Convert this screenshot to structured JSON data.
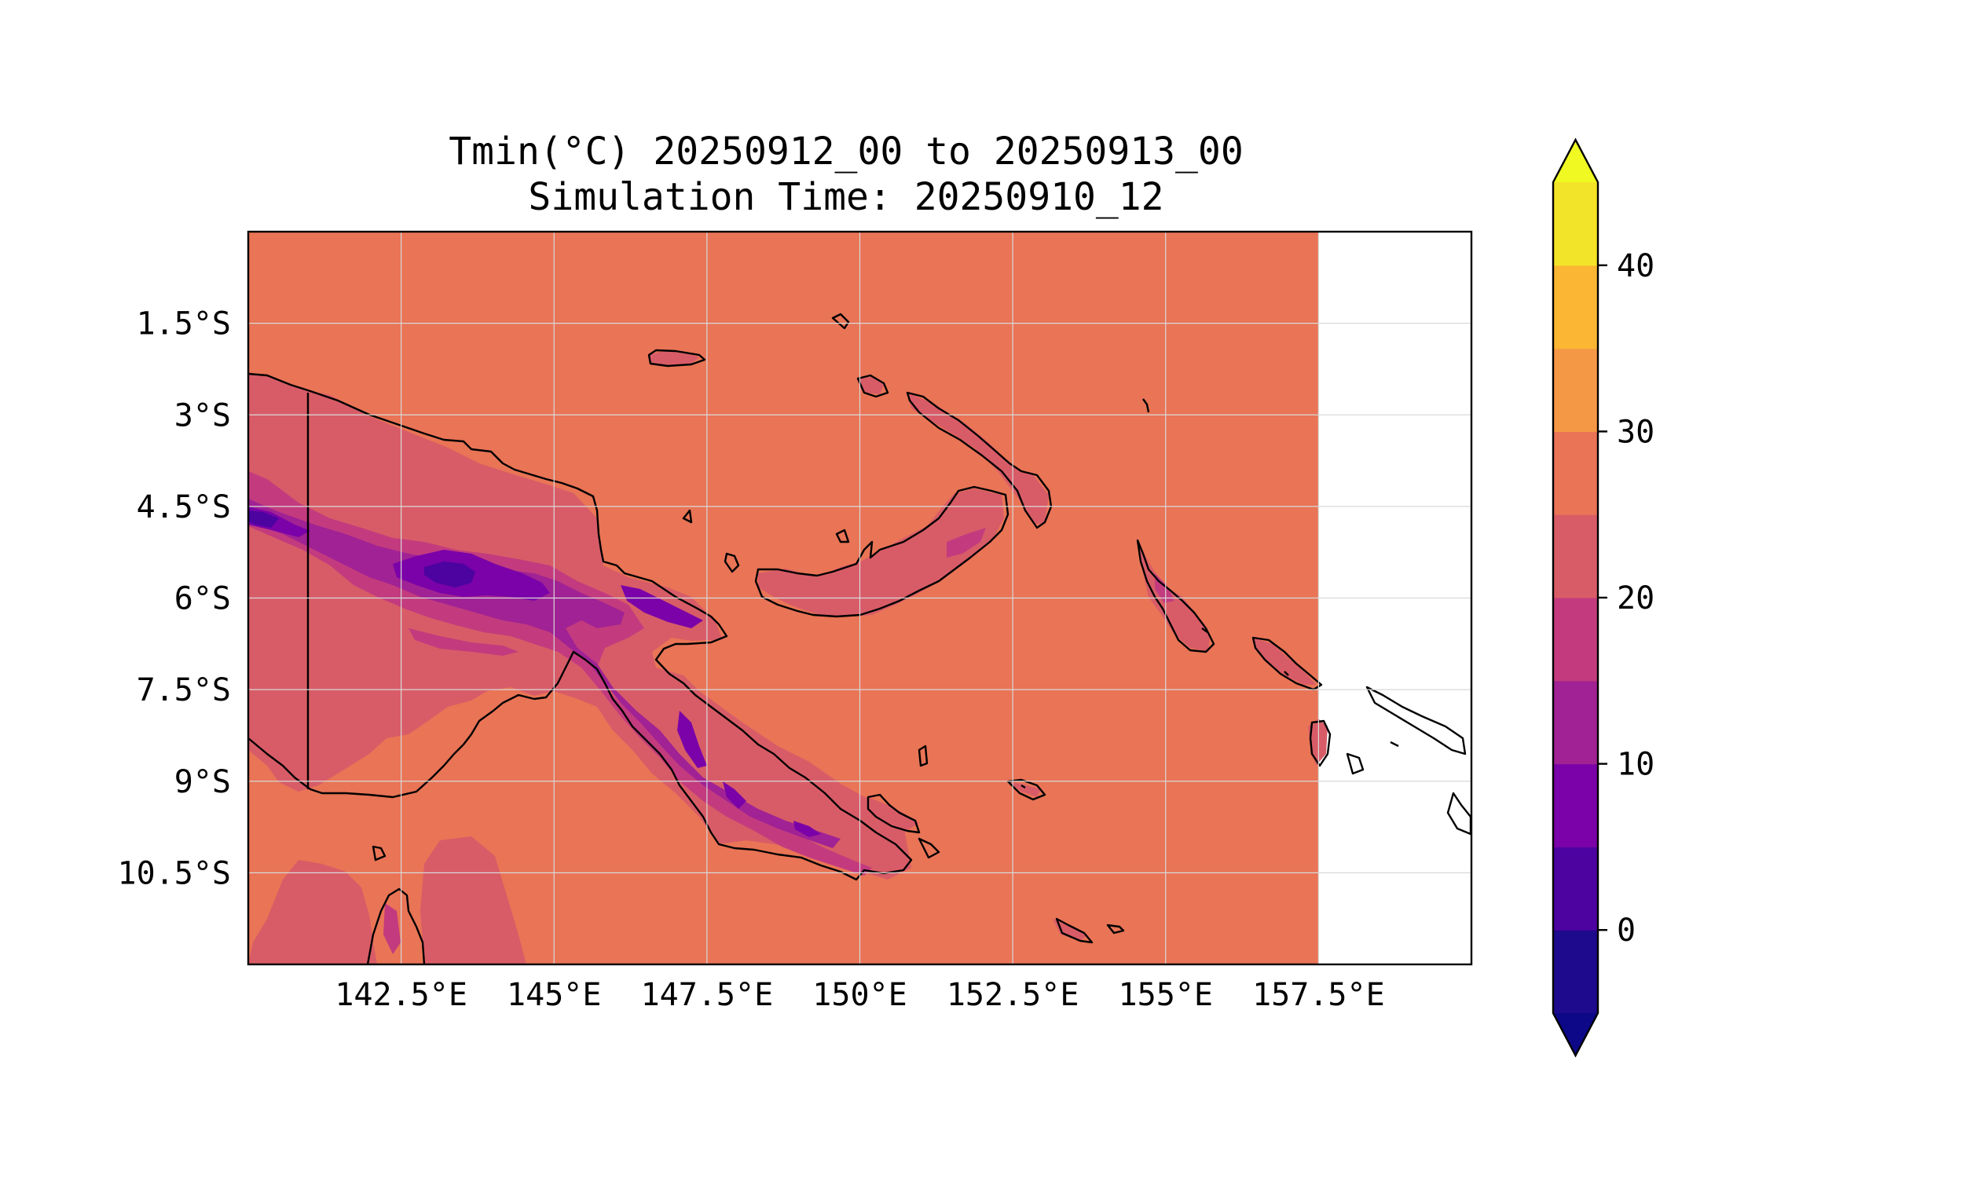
{
  "title": {
    "line1": "Tmin(°C) 20250912_00 to 20250913_00",
    "line2": "Simulation Time: 20250910_12"
  },
  "map": {
    "x_ticks": [
      "142.5°E",
      "145°E",
      "147.5°E",
      "150°E",
      "152.5°E",
      "155°E",
      "157.5°E"
    ],
    "y_ticks": [
      "1.5°S",
      "3°S",
      "4.5°S",
      "6°S",
      "7.5°S",
      "9°S",
      "10.5°S"
    ],
    "lon_ticks": [
      142.5,
      145,
      147.5,
      150,
      152.5,
      155,
      157.5
    ],
    "lat_ticks": [
      -1.5,
      -3,
      -4.5,
      -6,
      -7.5,
      -9,
      -10.5
    ],
    "lon_range": [
      140,
      160
    ],
    "lat_range": [
      -12,
      0
    ],
    "data_extent_lon_max": 157.5,
    "background_level_color": "#e97456",
    "gridlines": true
  },
  "colorbar": {
    "levels": [
      -5,
      0,
      5,
      10,
      15,
      20,
      25,
      30,
      35,
      40,
      45
    ],
    "tick_values": [
      0,
      10,
      20,
      30,
      40
    ],
    "tick_labels": [
      "0",
      "10",
      "20",
      "30",
      "40"
    ],
    "colors": [
      "#1e0a8c",
      "#4c03a0",
      "#7a02a8",
      "#a02294",
      "#c33b7e",
      "#d85c67",
      "#e97456",
      "#f59846",
      "#fbb633",
      "#f2e428"
    ],
    "under_color": "#0d0887",
    "over_color": "#f0f921",
    "extend": "both",
    "colormap": "plasma"
  }
}
